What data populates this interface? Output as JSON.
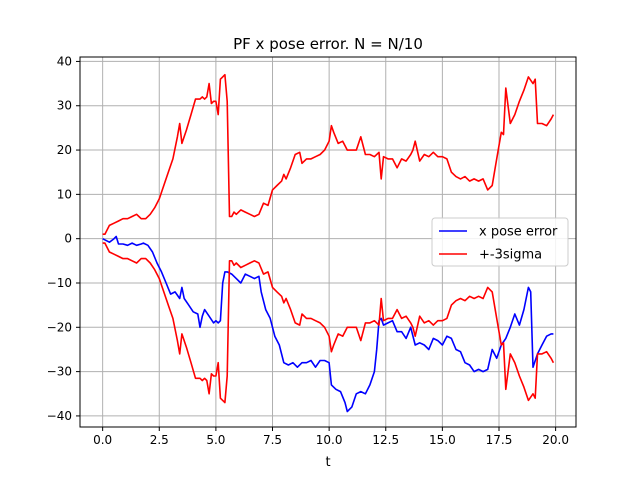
{
  "chart_data": {
    "type": "line",
    "title": "PF x pose error. N = N/10",
    "xlabel": "t",
    "ylabel": "",
    "xlim": [
      -1.0,
      20.9
    ],
    "ylim": [
      -42.5,
      41.0
    ],
    "xticks": [
      0.0,
      2.5,
      5.0,
      7.5,
      10.0,
      12.5,
      15.0,
      17.5,
      20.0
    ],
    "xtick_labels": [
      "0.0",
      "2.5",
      "5.0",
      "7.5",
      "10.0",
      "12.5",
      "15.0",
      "17.5",
      "20.0"
    ],
    "yticks": [
      -40,
      -30,
      -20,
      -10,
      0,
      10,
      20,
      30,
      40
    ],
    "ytick_labels": [
      "−40",
      "−30",
      "−20",
      "−10",
      "0",
      "10",
      "20",
      "30",
      "40"
    ],
    "grid": true,
    "legend_position": "center-right",
    "series": [
      {
        "name": "x pose error",
        "color": "#0000ff",
        "x": [
          0.0,
          0.3,
          0.5,
          0.6,
          0.7,
          0.9,
          1.1,
          1.3,
          1.5,
          1.7,
          1.8,
          2.0,
          2.2,
          2.4,
          2.6,
          2.8,
          3.0,
          3.2,
          3.4,
          3.5,
          3.6,
          3.8,
          4.0,
          4.2,
          4.3,
          4.4,
          4.5,
          4.7,
          4.9,
          5.0,
          5.1,
          5.2,
          5.3,
          5.4,
          5.5,
          5.7,
          5.9,
          6.1,
          6.3,
          6.5,
          6.7,
          6.9,
          7.0,
          7.2,
          7.4,
          7.6,
          7.8,
          8.0,
          8.2,
          8.4,
          8.6,
          8.8,
          9.0,
          9.2,
          9.4,
          9.6,
          9.8,
          10.0,
          10.1,
          10.3,
          10.5,
          10.7,
          10.8,
          11.0,
          11.2,
          11.4,
          11.6,
          11.8,
          12.0,
          12.1,
          12.2,
          12.3,
          12.4,
          12.6,
          12.8,
          13.0,
          13.2,
          13.4,
          13.6,
          13.8,
          14.0,
          14.2,
          14.4,
          14.6,
          14.8,
          15.0,
          15.2,
          15.4,
          15.6,
          15.8,
          16.0,
          16.2,
          16.4,
          16.6,
          16.8,
          17.0,
          17.2,
          17.4,
          17.6,
          17.8,
          18.0,
          18.2,
          18.4,
          18.6,
          18.8,
          18.9,
          19.0,
          19.2,
          19.4,
          19.6,
          19.8,
          19.9
        ],
        "y": [
          0.0,
          -0.8,
          0.0,
          0.5,
          -1.2,
          -1.2,
          -1.5,
          -1.0,
          -1.5,
          -1.2,
          -1.0,
          -1.5,
          -3.0,
          -5.5,
          -7.5,
          -10.0,
          -12.5,
          -12.0,
          -13.5,
          -11.0,
          -13.5,
          -15.0,
          -16.5,
          -17.0,
          -20.0,
          -17.5,
          -16.0,
          -17.5,
          -19.0,
          -18.5,
          -19.0,
          -18.5,
          -10.0,
          -7.5,
          -7.5,
          -8.0,
          -9.0,
          -10.0,
          -8.0,
          -8.5,
          -9.0,
          -8.5,
          -12.0,
          -16.0,
          -18.0,
          -22.0,
          -24.0,
          -28.0,
          -28.5,
          -28.0,
          -29.0,
          -28.0,
          -28.0,
          -27.5,
          -29.0,
          -27.5,
          -27.5,
          -28.0,
          -33.0,
          -34.0,
          -34.5,
          -37.0,
          -39.0,
          -38.0,
          -35.0,
          -34.5,
          -35.0,
          -33.0,
          -30.0,
          -25.0,
          -18.5,
          -18.0,
          -19.5,
          -19.0,
          -18.5,
          -21.0,
          -21.0,
          -22.5,
          -20.0,
          -24.0,
          -23.5,
          -24.0,
          -25.0,
          -22.5,
          -23.0,
          -24.0,
          -22.0,
          -22.5,
          -25.0,
          -25.5,
          -28.0,
          -28.5,
          -30.0,
          -29.5,
          -30.0,
          -29.5,
          -25.0,
          -27.0,
          -24.0,
          -22.5,
          -20.0,
          -17.0,
          -19.5,
          -16.0,
          -11.0,
          -12.0,
          -29.0,
          -26.0,
          -24.0,
          -22.0,
          -21.5,
          -21.5
        ]
      },
      {
        "name": "+-3sigma",
        "color": "#ff0000",
        "x": [
          0.0,
          0.1,
          0.3,
          0.5,
          0.7,
          0.9,
          1.1,
          1.3,
          1.5,
          1.6,
          1.7,
          1.9,
          2.1,
          2.3,
          2.5,
          2.7,
          2.9,
          3.1,
          3.3,
          3.4,
          3.5,
          3.7,
          3.9,
          4.1,
          4.3,
          4.4,
          4.5,
          4.6,
          4.7,
          4.8,
          4.9,
          5.0,
          5.1,
          5.2,
          5.3,
          5.4,
          5.5,
          5.6,
          5.7,
          5.8,
          5.9,
          6.1,
          6.3,
          6.5,
          6.7,
          6.9,
          7.1,
          7.3,
          7.5,
          7.7,
          7.9,
          8.0,
          8.1,
          8.3,
          8.5,
          8.7,
          8.8,
          9.0,
          9.2,
          9.4,
          9.6,
          9.8,
          10.0,
          10.1,
          10.2,
          10.4,
          10.6,
          10.8,
          11.0,
          11.2,
          11.4,
          11.6,
          11.8,
          12.0,
          12.2,
          12.3,
          12.4,
          12.6,
          12.8,
          13.0,
          13.2,
          13.4,
          13.6,
          13.7,
          13.8,
          14.0,
          14.2,
          14.4,
          14.6,
          14.8,
          15.0,
          15.2,
          15.4,
          15.6,
          15.8,
          16.0,
          16.2,
          16.4,
          16.6,
          16.8,
          17.0,
          17.2,
          17.4,
          17.6,
          17.7,
          17.8,
          18.0,
          18.2,
          18.4,
          18.6,
          18.8,
          19.0,
          19.1,
          19.2,
          19.4,
          19.6,
          19.8,
          19.9
        ],
        "y": [
          1.0,
          1.0,
          3.0,
          3.5,
          4.0,
          4.5,
          4.5,
          5.0,
          5.5,
          5.0,
          4.5,
          4.5,
          5.5,
          7.0,
          9.0,
          12.0,
          15.0,
          18.0,
          23.0,
          26.0,
          21.5,
          24.5,
          28.0,
          31.5,
          31.5,
          32.0,
          31.5,
          32.0,
          35.0,
          30.5,
          31.0,
          31.0,
          28.0,
          36.0,
          36.5,
          37.0,
          31.0,
          5.0,
          5.0,
          6.0,
          5.5,
          6.5,
          6.0,
          5.5,
          5.0,
          5.5,
          8.0,
          7.5,
          11.0,
          12.0,
          13.0,
          14.5,
          13.5,
          16.0,
          19.0,
          19.5,
          17.0,
          18.0,
          18.0,
          18.5,
          19.0,
          20.0,
          22.0,
          25.5,
          24.0,
          21.5,
          22.0,
          20.0,
          20.0,
          20.0,
          23.0,
          19.0,
          19.0,
          18.5,
          19.5,
          13.5,
          18.5,
          18.0,
          18.0,
          16.0,
          18.0,
          17.5,
          19.0,
          20.0,
          22.0,
          17.5,
          19.0,
          18.5,
          19.5,
          18.5,
          18.5,
          18.0,
          15.0,
          14.0,
          13.5,
          14.0,
          13.0,
          13.5,
          13.0,
          13.5,
          11.0,
          12.0,
          18.0,
          24.0,
          23.5,
          34.0,
          26.0,
          28.0,
          31.0,
          33.5,
          36.5,
          35.0,
          36.0,
          26.0,
          26.0,
          25.5,
          27.0,
          28.0
        ]
      }
    ]
  }
}
